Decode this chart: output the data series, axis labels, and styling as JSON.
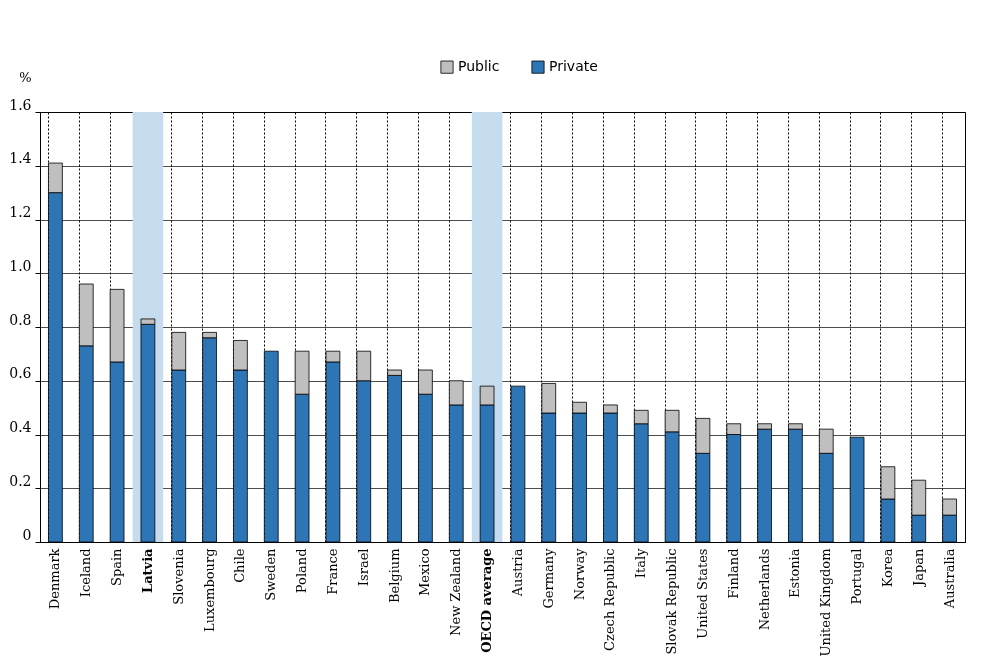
{
  "chart_data": {
    "type": "bar",
    "stacked": true,
    "ylabel": "%",
    "categories": [
      "Denmark",
      "Iceland",
      "Spain",
      "Latvia",
      "Slovenia",
      "Luxembourg",
      "Chile",
      "Sweden",
      "Poland",
      "France",
      "Israel",
      "Belgium",
      "Mexico",
      "New Zealand",
      "OECD average",
      "Austria",
      "Germany",
      "Norway",
      "Czech Republic",
      "Italy",
      "Slovak Republic",
      "United States",
      "Finland",
      "Netherlands",
      "Estonia",
      "United Kingdom",
      "Portugal",
      "Korea",
      "Japan",
      "Australia"
    ],
    "series": [
      {
        "name": "Private",
        "color": "#2e75b6",
        "values": [
          1.3,
          0.73,
          0.67,
          0.81,
          0.64,
          0.76,
          0.64,
          0.71,
          0.55,
          0.67,
          0.6,
          0.62,
          0.55,
          0.51,
          0.51,
          0.58,
          0.48,
          0.48,
          0.48,
          0.44,
          0.41,
          0.33,
          0.4,
          0.42,
          0.42,
          0.33,
          0.39,
          0.16,
          0.1,
          0.1
        ]
      },
      {
        "name": "Public",
        "color": "#bfbfbf",
        "values": [
          0.11,
          0.23,
          0.27,
          0.02,
          0.14,
          0.02,
          0.11,
          0,
          0.16,
          0.04,
          0.11,
          0.02,
          0.09,
          0.09,
          0.07,
          0,
          0.11,
          0.04,
          0.03,
          0.05,
          0.08,
          0.13,
          0.04,
          0.02,
          0.02,
          0.09,
          0,
          0.12,
          0.13,
          0.06
        ]
      }
    ],
    "ylim": [
      0,
      1.6
    ],
    "yticks": [
      0,
      0.2,
      0.4,
      0.6,
      0.8,
      {
        "value": 1,
        "label": "1.0"
      },
      1.2,
      1.4,
      1.6
    ],
    "bands": [
      {
        "axis": "x",
        "from": "Latvia",
        "to": "Latvia",
        "color": "#c5dcee"
      },
      {
        "axis": "x",
        "from": "OECD average",
        "to": "OECD average",
        "color": "#c5dcee"
      }
    ],
    "grid": true,
    "legend": "top"
  }
}
